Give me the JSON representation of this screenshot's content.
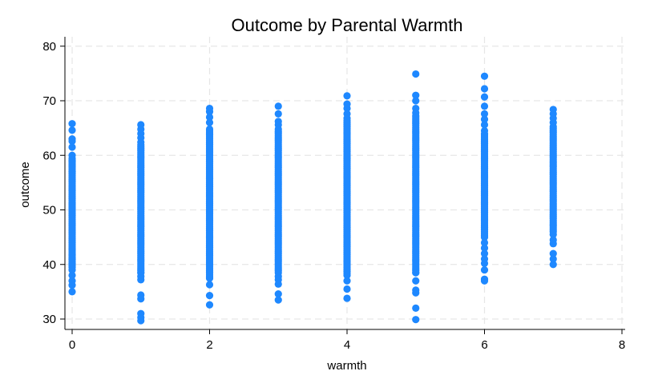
{
  "chart_data": {
    "type": "scatter",
    "title": "Outcome by Parental Warmth",
    "xlabel": "warmth",
    "ylabel": "outcome",
    "xlim": [
      0,
      8
    ],
    "ylim": [
      28.5,
      81.5
    ],
    "xticks": [
      0,
      2,
      4,
      6,
      8
    ],
    "yticks": [
      30,
      40,
      50,
      60,
      70,
      80
    ],
    "grid": true,
    "marker_color": "#1e88ff",
    "groups": [
      {
        "x": 0,
        "min": 35.0,
        "max": 65.8,
        "dense_min": 39.5,
        "dense_max": 59.5,
        "points": [
          35.0,
          36.2,
          37.0,
          38.0,
          39.0,
          40.2,
          41.0,
          41.8,
          57.0,
          58.0,
          59.0,
          60.0,
          61.5,
          62.6,
          63.0,
          64.6,
          65.8
        ]
      },
      {
        "x": 1,
        "min": 29.7,
        "max": 65.6,
        "dense_min": 38.5,
        "dense_max": 62.0,
        "points": [
          29.7,
          30.3,
          31.0,
          33.7,
          34.4,
          37.2,
          37.8,
          38.5,
          62.4,
          63.2,
          64.0,
          64.8,
          65.6
        ]
      },
      {
        "x": 2,
        "min": 32.6,
        "max": 68.6,
        "dense_min": 37.5,
        "dense_max": 65.0,
        "points": [
          32.6,
          34.3,
          36.3,
          37.5,
          66.0,
          67.0,
          68.0,
          68.6
        ]
      },
      {
        "x": 3,
        "min": 33.5,
        "max": 69.0,
        "dense_min": 38.5,
        "dense_max": 64.5,
        "points": [
          33.5,
          34.6,
          36.4,
          37.2,
          37.8,
          64.8,
          65.6,
          66.2,
          67.6,
          69.0
        ]
      },
      {
        "x": 4,
        "min": 33.8,
        "max": 70.9,
        "dense_min": 38.0,
        "dense_max": 66.5,
        "points": [
          33.8,
          35.5,
          37.0,
          66.8,
          67.6,
          68.6,
          69.4,
          70.9
        ]
      },
      {
        "x": 5,
        "min": 29.9,
        "max": 74.9,
        "dense_min": 38.5,
        "dense_max": 67.5,
        "points": [
          29.9,
          32.0,
          34.8,
          35.3,
          37.0,
          38.5,
          67.8,
          68.6,
          70.0,
          71.0,
          74.9
        ]
      },
      {
        "x": 6,
        "min": 37.0,
        "max": 74.5,
        "dense_min": 45.0,
        "dense_max": 64.0,
        "points": [
          37.0,
          37.3,
          39.0,
          40.2,
          41.0,
          42.0,
          43.0,
          44.0,
          64.5,
          65.6,
          66.6,
          67.6,
          69.0,
          70.7,
          72.2,
          74.5
        ]
      },
      {
        "x": 7,
        "min": 40.0,
        "max": 68.4,
        "dense_min": 46.0,
        "dense_max": 65.5,
        "points": [
          40.0,
          41.0,
          42.0,
          43.8,
          44.5,
          45.5,
          66.0,
          66.8,
          67.6,
          68.4
        ]
      }
    ]
  }
}
